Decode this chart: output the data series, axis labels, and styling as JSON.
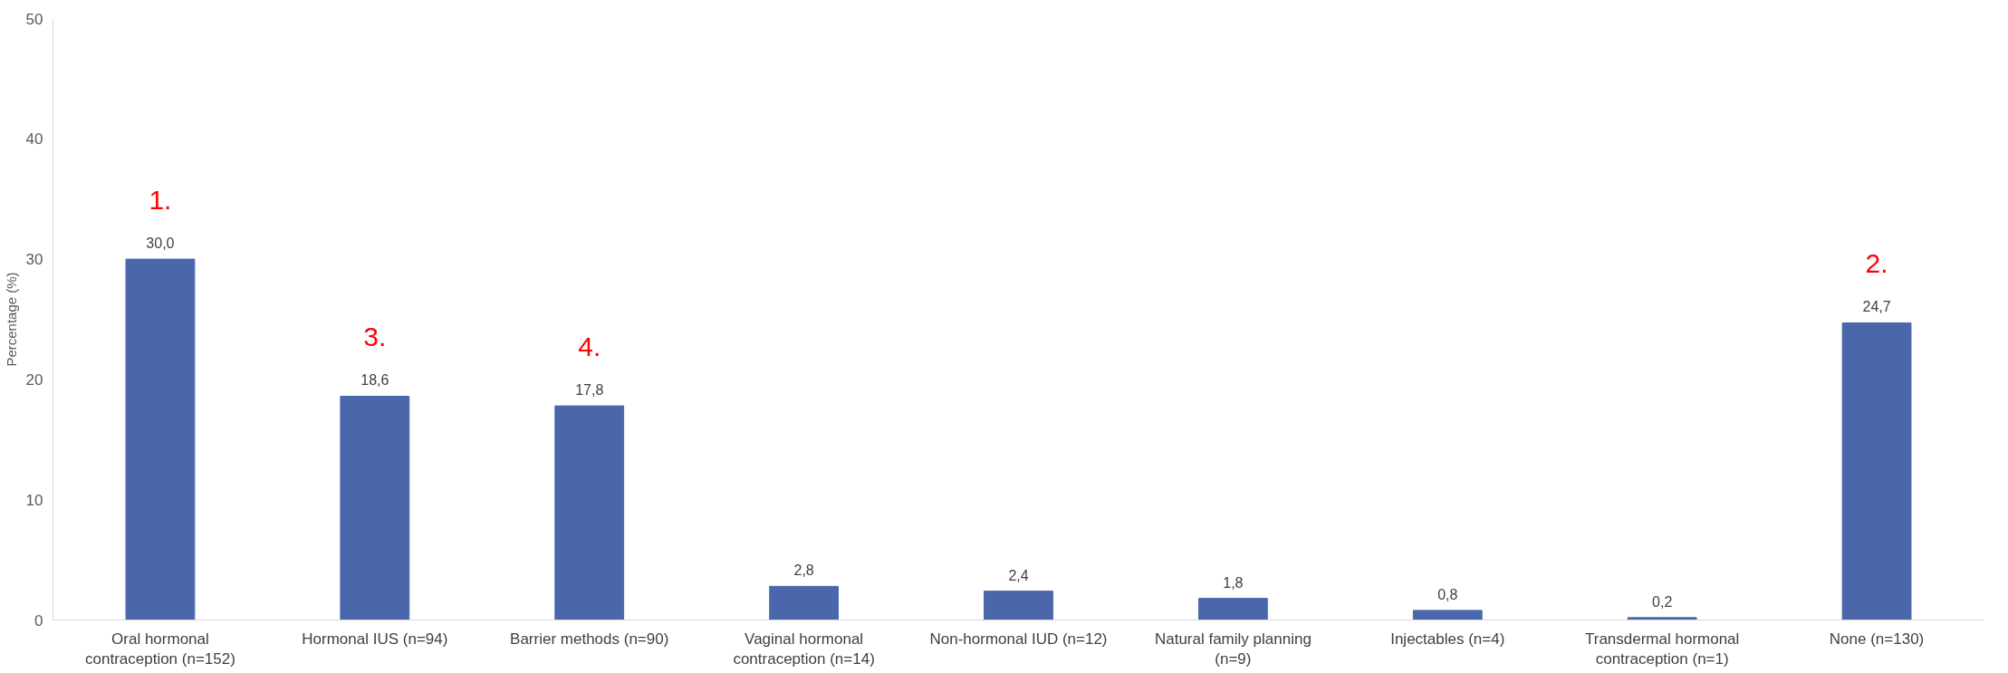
{
  "chart_data": {
    "type": "bar",
    "ylabel": "Percentage (%)",
    "categories": [
      "Oral hormonal contraception (n=152)",
      "Hormonal IUS (n=94)",
      "Barrier methods (n=90)",
      "Vaginal hormonal contraception (n=14)",
      "Non-hormonal IUD (n=12)",
      "Natural family planning (n=9)",
      "Injectables (n=4)",
      "Transdermal hormonal contraception (n=1)",
      "None (n=130)"
    ],
    "values": [
      30.0,
      18.6,
      17.8,
      2.8,
      2.4,
      1.8,
      0.8,
      0.2,
      24.7
    ],
    "value_labels": [
      "30,0",
      "18,6",
      "17,8",
      "2,8",
      "2,4",
      "1,8",
      "0,8",
      "0,2",
      "24,7"
    ],
    "color": "#4a67ac",
    "ylim": [
      0,
      50
    ],
    "yticks": [
      0,
      10,
      20,
      30,
      40,
      50
    ],
    "grid": false,
    "annotations": [
      "1.",
      "2.",
      "3.",
      "4."
    ]
  }
}
